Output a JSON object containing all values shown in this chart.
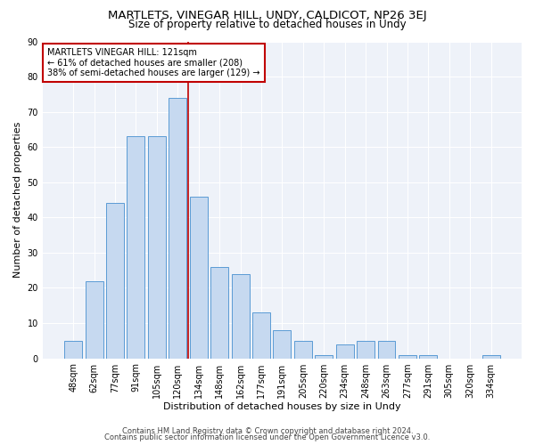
{
  "title": "MARTLETS, VINEGAR HILL, UNDY, CALDICOT, NP26 3EJ",
  "subtitle": "Size of property relative to detached houses in Undy",
  "xlabel": "Distribution of detached houses by size in Undy",
  "ylabel": "Number of detached properties",
  "categories": [
    "48sqm",
    "62sqm",
    "77sqm",
    "91sqm",
    "105sqm",
    "120sqm",
    "134sqm",
    "148sqm",
    "162sqm",
    "177sqm",
    "191sqm",
    "205sqm",
    "220sqm",
    "234sqm",
    "248sqm",
    "263sqm",
    "277sqm",
    "291sqm",
    "305sqm",
    "320sqm",
    "334sqm"
  ],
  "values": [
    5,
    22,
    44,
    63,
    63,
    74,
    46,
    26,
    24,
    13,
    8,
    5,
    1,
    4,
    5,
    5,
    1,
    1,
    0,
    0,
    1
  ],
  "bar_color": "#c6d9f0",
  "bar_edge_color": "#5b9bd5",
  "vline_x": 5.5,
  "vline_color": "#c00000",
  "annotation_text": "MARTLETS VINEGAR HILL: 121sqm\n← 61% of detached houses are smaller (208)\n38% of semi-detached houses are larger (129) →",
  "annotation_box_color": "white",
  "annotation_box_edge": "#c00000",
  "ylim": [
    0,
    90
  ],
  "yticks": [
    0,
    10,
    20,
    30,
    40,
    50,
    60,
    70,
    80,
    90
  ],
  "footer_line1": "Contains HM Land Registry data © Crown copyright and database right 2024.",
  "footer_line2": "Contains public sector information licensed under the Open Government Licence v3.0.",
  "bg_color": "#eef2f9",
  "fig_bg_color": "#ffffff",
  "title_fontsize": 9.5,
  "subtitle_fontsize": 8.5,
  "axis_label_fontsize": 8,
  "tick_fontsize": 7,
  "annotation_fontsize": 7,
  "footer_fontsize": 6
}
